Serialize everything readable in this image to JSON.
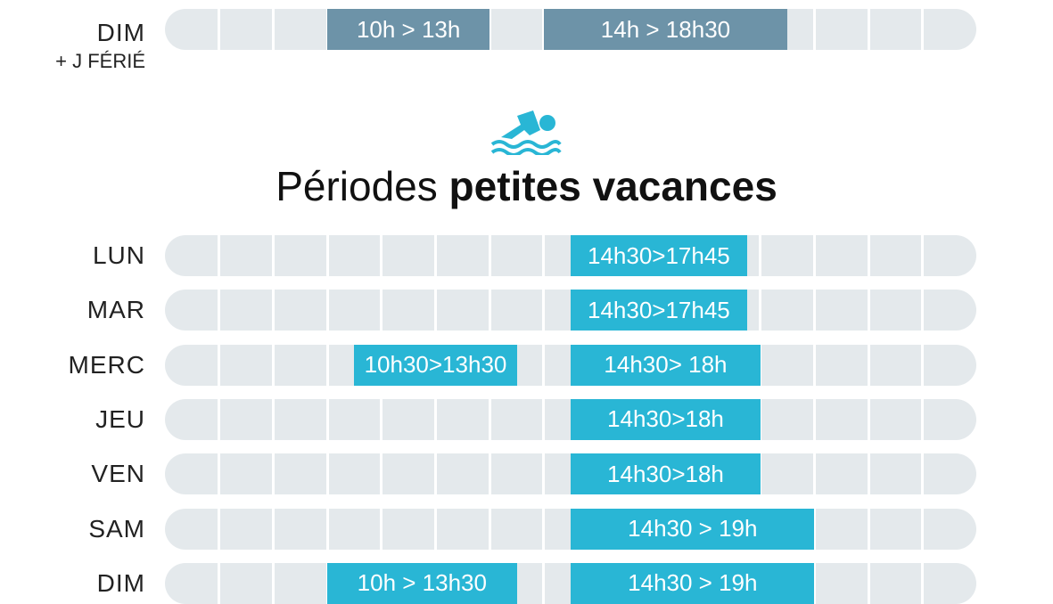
{
  "top_row": {
    "day": "DIM",
    "day_note": "+ J FÉRIÉ",
    "slots": [
      "10h > 13h",
      "14h > 18h30"
    ]
  },
  "heading": {
    "regular": "Périodes",
    "bold": "petites vacances"
  },
  "rows": [
    {
      "day": "LUN",
      "slots": [
        "14h30>17h45"
      ]
    },
    {
      "day": "MAR",
      "slots": [
        "14h30>17h45"
      ]
    },
    {
      "day": "MERC",
      "slots": [
        "10h30>13h30",
        "14h30> 18h"
      ]
    },
    {
      "day": "JEU",
      "slots": [
        "14h30>18h"
      ]
    },
    {
      "day": "VEN",
      "slots": [
        "14h30>18h"
      ]
    },
    {
      "day": "SAM",
      "slots": [
        "14h30 > 19h"
      ]
    },
    {
      "day": "DIM",
      "slots": [
        "10h > 13h30",
        "14h30 > 19h"
      ]
    }
  ]
}
